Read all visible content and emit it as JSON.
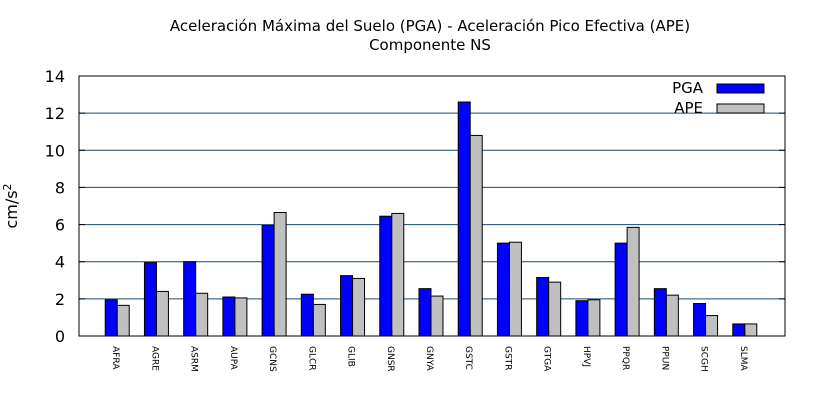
{
  "chart_data": {
    "type": "bar",
    "title": "Aceleración Máxima del Suelo (PGA) -  Aceleración Pico Efectiva (APE)",
    "subtitle": "Componente NS",
    "ylabel": "cm/s",
    "ylabel_superscript": "2",
    "xlabel": "",
    "ylim": [
      0,
      14
    ],
    "yticks": [
      0,
      2,
      4,
      6,
      8,
      10,
      12,
      14
    ],
    "grid": true,
    "legend_position": "top-right",
    "categories": [
      "AFRA",
      "AGRE",
      "ASRM",
      "AUPA",
      "GCNS",
      "GLCR",
      "GLIB",
      "GNSR",
      "GNYA",
      "GSTC",
      "GSTR",
      "GTGA",
      "HPVJ",
      "PPQR",
      "PPUN",
      "SCGH",
      "SLMA"
    ],
    "series": [
      {
        "name": "PGA",
        "color": "#0000ff",
        "values": [
          1.95,
          3.95,
          4.0,
          2.1,
          5.95,
          2.25,
          3.25,
          6.45,
          2.55,
          12.6,
          5.0,
          3.15,
          1.9,
          5.0,
          2.55,
          1.75,
          0.65
        ]
      },
      {
        "name": "APE",
        "color": "#c0c0c0",
        "values": [
          1.65,
          2.4,
          2.3,
          2.05,
          6.65,
          1.7,
          3.1,
          6.6,
          2.15,
          10.8,
          5.05,
          2.9,
          1.95,
          5.85,
          2.2,
          1.1,
          0.65
        ]
      }
    ]
  }
}
